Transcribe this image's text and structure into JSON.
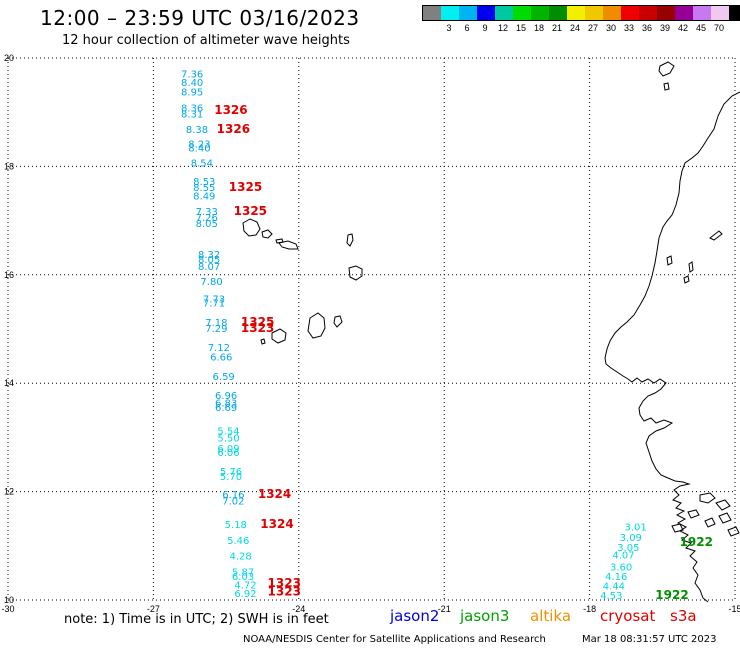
{
  "header": {
    "title": "12:00 – 23:59 UTC 03/16/2023",
    "subtitle": "12 hour collection of altimeter wave heights"
  },
  "legend": {
    "unit": "(ft)",
    "bins": [
      {
        "color": "#808080",
        "label": ""
      },
      {
        "color": "#00f0f0",
        "label": "3"
      },
      {
        "color": "#00b4f0",
        "label": "6"
      },
      {
        "color": "#0000f0",
        "label": "9"
      },
      {
        "color": "#00c8a0",
        "label": "12"
      },
      {
        "color": "#00dc00",
        "label": "15"
      },
      {
        "color": "#00b400",
        "label": "18"
      },
      {
        "color": "#008c00",
        "label": "21"
      },
      {
        "color": "#f0f000",
        "label": "24"
      },
      {
        "color": "#f0c800",
        "label": "27"
      },
      {
        "color": "#f08c00",
        "label": "30"
      },
      {
        "color": "#f00000",
        "label": "33"
      },
      {
        "color": "#c80000",
        "label": "36"
      },
      {
        "color": "#960000",
        "label": "39"
      },
      {
        "color": "#960096",
        "label": "42"
      },
      {
        "color": "#c878f0",
        "label": "45"
      },
      {
        "color": "#f0c8f0",
        "label": "70"
      },
      {
        "color": "#000000",
        "label": ""
      }
    ]
  },
  "map": {
    "lon_range": [
      -30,
      -15
    ],
    "lat_range": [
      10,
      20
    ],
    "lon_ticks": [
      "-30",
      "-27",
      "-24",
      "-21",
      "-18",
      "-15"
    ],
    "lat_ticks": [
      "20",
      "18",
      "16",
      "14",
      "12",
      "10"
    ],
    "grid_style": "dotted",
    "coastline_color": "#000000",
    "colors": {
      "cyan_light": "#00d8e0",
      "cyan_dark": "#00a8e8",
      "red": "#e00000",
      "green": "#009000"
    },
    "track1": [
      {
        "v": "7.36",
        "lon": -26.2,
        "lat": 19.71,
        "c": "cyan_dark"
      },
      {
        "v": "8.40",
        "lon": -26.2,
        "lat": 19.56,
        "c": "cyan_dark"
      },
      {
        "v": "8.95",
        "lon": -26.2,
        "lat": 19.38,
        "c": "cyan_dark"
      },
      {
        "v": "8.36",
        "lon": -26.2,
        "lat": 19.09,
        "c": "cyan_dark"
      },
      {
        "v": "8.31",
        "lon": -26.2,
        "lat": 18.98,
        "c": "cyan_dark"
      },
      {
        "v": "8.38",
        "lon": -26.1,
        "lat": 18.69,
        "c": "cyan_dark"
      },
      {
        "v": "8.23",
        "lon": -26.05,
        "lat": 18.42,
        "c": "cyan_dark"
      },
      {
        "v": "8.40",
        "lon": -26.05,
        "lat": 18.35,
        "c": "cyan_dark"
      },
      {
        "v": "8.54",
        "lon": -26.0,
        "lat": 18.07,
        "c": "cyan_dark"
      },
      {
        "v": "8.53",
        "lon": -25.95,
        "lat": 17.73,
        "c": "cyan_dark"
      },
      {
        "v": "8.55",
        "lon": -25.95,
        "lat": 17.62,
        "c": "cyan_dark"
      },
      {
        "v": "8.49",
        "lon": -25.95,
        "lat": 17.46,
        "c": "cyan_dark"
      },
      {
        "v": "7.33",
        "lon": -25.9,
        "lat": 17.18,
        "c": "cyan_dark"
      },
      {
        "v": "7.26",
        "lon": -25.9,
        "lat": 17.07,
        "c": "cyan_dark"
      },
      {
        "v": "8.05",
        "lon": -25.9,
        "lat": 16.96,
        "c": "cyan_dark"
      },
      {
        "v": "8.32",
        "lon": -25.85,
        "lat": 16.38,
        "c": "cyan_dark"
      },
      {
        "v": "8.05",
        "lon": -25.85,
        "lat": 16.29,
        "c": "cyan_dark"
      },
      {
        "v": "8.07",
        "lon": -25.85,
        "lat": 16.16,
        "c": "cyan_dark"
      },
      {
        "v": "7.80",
        "lon": -25.8,
        "lat": 15.89,
        "c": "cyan_dark"
      },
      {
        "v": "7.73",
        "lon": -25.75,
        "lat": 15.56,
        "c": "cyan_dark"
      },
      {
        "v": "7.71",
        "lon": -25.75,
        "lat": 15.49,
        "c": "cyan_dark"
      },
      {
        "v": "7.18",
        "lon": -25.7,
        "lat": 15.13,
        "c": "cyan_dark"
      },
      {
        "v": "7.29",
        "lon": -25.7,
        "lat": 15.02,
        "c": "cyan_dark"
      },
      {
        "v": "7.12",
        "lon": -25.65,
        "lat": 14.67,
        "c": "cyan_dark"
      },
      {
        "v": "6.66",
        "lon": -25.6,
        "lat": 14.49,
        "c": "cyan_dark"
      },
      {
        "v": "6.59",
        "lon": -25.55,
        "lat": 14.13,
        "c": "cyan_dark"
      },
      {
        "v": "6.96",
        "lon": -25.5,
        "lat": 13.78,
        "c": "cyan_dark"
      },
      {
        "v": "6.83",
        "lon": -25.5,
        "lat": 13.64,
        "c": "cyan_dark"
      },
      {
        "v": "6.69",
        "lon": -25.5,
        "lat": 13.56,
        "c": "cyan_dark"
      },
      {
        "v": "5.54",
        "lon": -25.45,
        "lat": 13.13,
        "c": "cyan_light"
      },
      {
        "v": "5.50",
        "lon": -25.45,
        "lat": 13.0,
        "c": "cyan_light"
      },
      {
        "v": "6.09",
        "lon": -25.45,
        "lat": 12.8,
        "c": "cyan_light"
      },
      {
        "v": "6.06",
        "lon": -25.45,
        "lat": 12.73,
        "c": "cyan_light"
      },
      {
        "v": "5.76",
        "lon": -25.4,
        "lat": 12.38,
        "c": "cyan_light"
      },
      {
        "v": "5.70",
        "lon": -25.4,
        "lat": 12.29,
        "c": "cyan_light"
      },
      {
        "v": "6.16",
        "lon": -25.35,
        "lat": 11.96,
        "c": "cyan_dark"
      },
      {
        "v": "7.02",
        "lon": -25.35,
        "lat": 11.84,
        "c": "cyan_dark"
      },
      {
        "v": "5.18",
        "lon": -25.3,
        "lat": 11.4,
        "c": "cyan_light"
      },
      {
        "v": "5.46",
        "lon": -25.25,
        "lat": 11.11,
        "c": "cyan_light"
      },
      {
        "v": "4.28",
        "lon": -25.2,
        "lat": 10.82,
        "c": "cyan_light"
      },
      {
        "v": "5.87",
        "lon": -25.15,
        "lat": 10.53,
        "c": "cyan_light"
      },
      {
        "v": "6.03",
        "lon": -25.15,
        "lat": 10.44,
        "c": "cyan_light"
      },
      {
        "v": "4.72",
        "lon": -25.1,
        "lat": 10.29,
        "c": "cyan_light"
      },
      {
        "v": "6.92",
        "lon": -25.1,
        "lat": 10.13,
        "c": "cyan_light"
      }
    ],
    "track2": [
      {
        "v": "3.01",
        "lon": -17.05,
        "lat": 11.36,
        "c": "cyan_light"
      },
      {
        "v": "3.09",
        "lon": -17.15,
        "lat": 11.16,
        "c": "cyan_light"
      },
      {
        "v": "3.05",
        "lon": -17.2,
        "lat": 10.98,
        "c": "cyan_light"
      },
      {
        "v": "4.07",
        "lon": -17.3,
        "lat": 10.84,
        "c": "cyan_light"
      },
      {
        "v": "3.60",
        "lon": -17.35,
        "lat": 10.62,
        "c": "cyan_light"
      },
      {
        "v": "4.16",
        "lon": -17.45,
        "lat": 10.44,
        "c": "cyan_light"
      },
      {
        "v": "4.44",
        "lon": -17.5,
        "lat": 10.27,
        "c": "cyan_light"
      },
      {
        "v": "4.53",
        "lon": -17.55,
        "lat": 10.09,
        "c": "cyan_light"
      }
    ],
    "pass_labels": [
      {
        "v": "1326",
        "lon": -25.4,
        "lat": 19.04,
        "c": "red"
      },
      {
        "v": "1326",
        "lon": -25.35,
        "lat": 18.69,
        "c": "red"
      },
      {
        "v": "1325",
        "lon": -25.1,
        "lat": 17.62,
        "c": "red"
      },
      {
        "v": "1325",
        "lon": -25.0,
        "lat": 17.18,
        "c": "red"
      },
      {
        "v": "1325",
        "lon": -24.85,
        "lat": 15.13,
        "c": "red"
      },
      {
        "v": "1323",
        "lon": -24.85,
        "lat": 15.02,
        "c": "red"
      },
      {
        "v": "1324",
        "lon": -24.5,
        "lat": 11.96,
        "c": "red"
      },
      {
        "v": "1324",
        "lon": -24.45,
        "lat": 11.4,
        "c": "red"
      },
      {
        "v": "1323",
        "lon": -24.3,
        "lat": 10.31,
        "c": "red"
      },
      {
        "v": "1323",
        "lon": -24.3,
        "lat": 10.16,
        "c": "red"
      },
      {
        "v": "1922",
        "lon": -15.8,
        "lat": 11.07,
        "c": "green"
      },
      {
        "v": "1922",
        "lon": -16.3,
        "lat": 10.09,
        "c": "green"
      }
    ]
  },
  "footer": {
    "note": "note:  1) Time is in UTC;  2) SWH is in feet",
    "satellites": [
      {
        "name": "jason2",
        "color": "#0000e0"
      },
      {
        "name": "jason3",
        "color": "#00a000"
      },
      {
        "name": "altika",
        "color": "#f09000"
      },
      {
        "name": "cryosat",
        "color": "#e00000"
      },
      {
        "name": "s3a",
        "color": "#e00000"
      }
    ],
    "credit": "NOAA/NESDIS Center for Satellite Applications and Research",
    "timestamp": "Mar 18 08:31:57 UTC 2023"
  }
}
